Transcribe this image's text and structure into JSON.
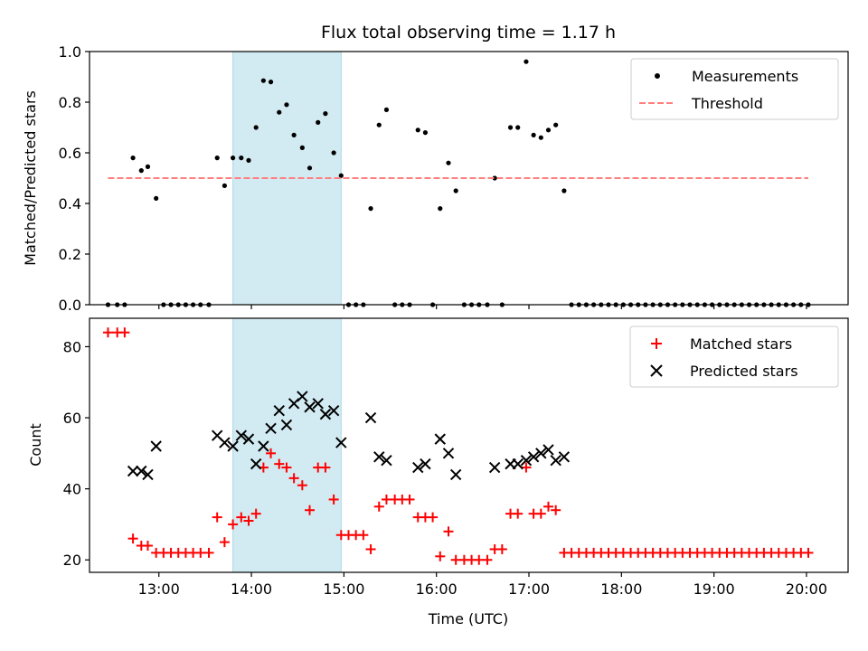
{
  "chart_data": [
    {
      "type": "scatter",
      "title": "Flux total observing time = 1.17 h",
      "ylabel": "Matched/Predicted stars",
      "xlabel": "",
      "x_unit": "hours UTC",
      "xlim": [
        12.25,
        20.45
      ],
      "ylim": [
        0.0,
        1.0
      ],
      "yticks": [
        0.0,
        0.2,
        0.4,
        0.6,
        0.8,
        1.0
      ],
      "ytick_labels": [
        "0.0",
        "0.2",
        "0.4",
        "0.6",
        "0.8",
        "1.0"
      ],
      "xticks": [
        13,
        14,
        15,
        16,
        17,
        18,
        19,
        20
      ],
      "shaded_span": [
        13.8,
        14.97
      ],
      "shade_color": "#add8e6",
      "legend_location": "upper right",
      "legend": [
        "Measurements",
        "Threshold"
      ],
      "series": [
        {
          "name": "Measurements",
          "marker": "dot",
          "color": "#000000",
          "points": [
            [
              12.45,
              0.0
            ],
            [
              12.55,
              0.0
            ],
            [
              12.63,
              0.0
            ],
            [
              12.72,
              0.58
            ],
            [
              12.81,
              0.53
            ],
            [
              12.88,
              0.545
            ],
            [
              12.97,
              0.42
            ],
            [
              13.05,
              0.0
            ],
            [
              13.13,
              0.0
            ],
            [
              13.21,
              0.0
            ],
            [
              13.29,
              0.0
            ],
            [
              13.37,
              0.0
            ],
            [
              13.45,
              0.0
            ],
            [
              13.54,
              0.0
            ],
            [
              13.63,
              0.58
            ],
            [
              13.71,
              0.47
            ],
            [
              13.8,
              0.58
            ],
            [
              13.89,
              0.58
            ],
            [
              13.97,
              0.57
            ],
            [
              14.05,
              0.7
            ],
            [
              14.13,
              0.885
            ],
            [
              14.21,
              0.88
            ],
            [
              14.3,
              0.76
            ],
            [
              14.38,
              0.79
            ],
            [
              14.46,
              0.67
            ],
            [
              14.55,
              0.62
            ],
            [
              14.63,
              0.54
            ],
            [
              14.72,
              0.72
            ],
            [
              14.8,
              0.755
            ],
            [
              14.89,
              0.6
            ],
            [
              14.97,
              0.51
            ],
            [
              15.05,
              0.0
            ],
            [
              15.13,
              0.0
            ],
            [
              15.21,
              0.0
            ],
            [
              15.29,
              0.38
            ],
            [
              15.38,
              0.71
            ],
            [
              15.46,
              0.77
            ],
            [
              15.55,
              0.0
            ],
            [
              15.63,
              0.0
            ],
            [
              15.71,
              0.0
            ],
            [
              15.8,
              0.69
            ],
            [
              15.88,
              0.68
            ],
            [
              15.96,
              0.0
            ],
            [
              16.04,
              0.38
            ],
            [
              16.13,
              0.56
            ],
            [
              16.21,
              0.45
            ],
            [
              16.3,
              0.0
            ],
            [
              16.38,
              0.0
            ],
            [
              16.46,
              0.0
            ],
            [
              16.55,
              0.0
            ],
            [
              16.63,
              0.5
            ],
            [
              16.71,
              0.0
            ],
            [
              16.8,
              0.7
            ],
            [
              16.88,
              0.7
            ],
            [
              16.97,
              0.96
            ],
            [
              17.05,
              0.67
            ],
            [
              17.13,
              0.66
            ],
            [
              17.21,
              0.69
            ],
            [
              17.29,
              0.71
            ],
            [
              17.38,
              0.45
            ],
            [
              17.46,
              0.0
            ],
            [
              17.54,
              0.0
            ],
            [
              17.62,
              0.0
            ],
            [
              17.7,
              0.0
            ],
            [
              17.78,
              0.0
            ],
            [
              17.86,
              0.0
            ],
            [
              17.94,
              0.0
            ],
            [
              18.02,
              0.0
            ],
            [
              18.1,
              0.0
            ],
            [
              18.18,
              0.0
            ],
            [
              18.26,
              0.0
            ],
            [
              18.34,
              0.0
            ],
            [
              18.42,
              0.0
            ],
            [
              18.5,
              0.0
            ],
            [
              18.58,
              0.0
            ],
            [
              18.66,
              0.0
            ],
            [
              18.74,
              0.0
            ],
            [
              18.82,
              0.0
            ],
            [
              18.9,
              0.0
            ],
            [
              18.98,
              0.0
            ],
            [
              19.06,
              0.0
            ],
            [
              19.14,
              0.0
            ],
            [
              19.22,
              0.0
            ],
            [
              19.3,
              0.0
            ],
            [
              19.38,
              0.0
            ],
            [
              19.46,
              0.0
            ],
            [
              19.54,
              0.0
            ],
            [
              19.62,
              0.0
            ],
            [
              19.7,
              0.0
            ],
            [
              19.78,
              0.0
            ],
            [
              19.86,
              0.0
            ],
            [
              19.94,
              0.0
            ],
            [
              20.02,
              0.0
            ]
          ]
        },
        {
          "name": "Threshold",
          "marker": "dashed-line",
          "color": "#ff7f7f",
          "points": [
            [
              12.45,
              0.5
            ],
            [
              20.02,
              0.5
            ]
          ]
        }
      ]
    },
    {
      "type": "scatter",
      "title": "",
      "ylabel": "Count",
      "xlabel": "Time (UTC)",
      "x_unit": "hours UTC",
      "xlim": [
        12.25,
        20.45
      ],
      "ylim": [
        16.5,
        88
      ],
      "yticks": [
        20,
        40,
        60,
        80
      ],
      "ytick_labels": [
        "20",
        "40",
        "60",
        "80"
      ],
      "xticks": [
        13,
        14,
        15,
        16,
        17,
        18,
        19,
        20
      ],
      "xtick_labels": [
        "13:00",
        "14:00",
        "15:00",
        "16:00",
        "17:00",
        "18:00",
        "19:00",
        "20:00"
      ],
      "shaded_span": [
        13.8,
        14.97
      ],
      "shade_color": "#add8e6",
      "legend_location": "upper right",
      "legend": [
        "Matched stars",
        "Predicted stars"
      ],
      "series": [
        {
          "name": "Matched stars",
          "marker": "plus",
          "color": "#ff0000",
          "points": [
            [
              12.45,
              84
            ],
            [
              12.55,
              84
            ],
            [
              12.63,
              84
            ],
            [
              12.72,
              26
            ],
            [
              12.81,
              24
            ],
            [
              12.88,
              24
            ],
            [
              12.97,
              22
            ],
            [
              13.05,
              22
            ],
            [
              13.13,
              22
            ],
            [
              13.21,
              22
            ],
            [
              13.29,
              22
            ],
            [
              13.37,
              22
            ],
            [
              13.45,
              22
            ],
            [
              13.54,
              22
            ],
            [
              13.63,
              32
            ],
            [
              13.71,
              25
            ],
            [
              13.8,
              30
            ],
            [
              13.89,
              32
            ],
            [
              13.97,
              31
            ],
            [
              14.05,
              33
            ],
            [
              14.13,
              46
            ],
            [
              14.21,
              50
            ],
            [
              14.3,
              47
            ],
            [
              14.38,
              46
            ],
            [
              14.46,
              43
            ],
            [
              14.55,
              41
            ],
            [
              14.63,
              34
            ],
            [
              14.72,
              46
            ],
            [
              14.8,
              46
            ],
            [
              14.89,
              37
            ],
            [
              14.97,
              27
            ],
            [
              15.05,
              27
            ],
            [
              15.13,
              27
            ],
            [
              15.21,
              27
            ],
            [
              15.29,
              23
            ],
            [
              15.38,
              35
            ],
            [
              15.46,
              37
            ],
            [
              15.55,
              37
            ],
            [
              15.63,
              37
            ],
            [
              15.71,
              37
            ],
            [
              15.8,
              32
            ],
            [
              15.88,
              32
            ],
            [
              15.96,
              32
            ],
            [
              16.04,
              21
            ],
            [
              16.13,
              28
            ],
            [
              16.21,
              20
            ],
            [
              16.3,
              20
            ],
            [
              16.38,
              20
            ],
            [
              16.46,
              20
            ],
            [
              16.55,
              20
            ],
            [
              16.63,
              23
            ],
            [
              16.71,
              23
            ],
            [
              16.8,
              33
            ],
            [
              16.88,
              33
            ],
            [
              16.97,
              46
            ],
            [
              17.05,
              33
            ],
            [
              17.13,
              33
            ],
            [
              17.21,
              35
            ],
            [
              17.29,
              34
            ],
            [
              17.38,
              22
            ],
            [
              17.46,
              22
            ],
            [
              17.54,
              22
            ],
            [
              17.62,
              22
            ],
            [
              17.7,
              22
            ],
            [
              17.78,
              22
            ],
            [
              17.86,
              22
            ],
            [
              17.94,
              22
            ],
            [
              18.02,
              22
            ],
            [
              18.1,
              22
            ],
            [
              18.18,
              22
            ],
            [
              18.26,
              22
            ],
            [
              18.34,
              22
            ],
            [
              18.42,
              22
            ],
            [
              18.5,
              22
            ],
            [
              18.58,
              22
            ],
            [
              18.66,
              22
            ],
            [
              18.74,
              22
            ],
            [
              18.82,
              22
            ],
            [
              18.9,
              22
            ],
            [
              18.98,
              22
            ],
            [
              19.06,
              22
            ],
            [
              19.14,
              22
            ],
            [
              19.22,
              22
            ],
            [
              19.3,
              22
            ],
            [
              19.38,
              22
            ],
            [
              19.46,
              22
            ],
            [
              19.54,
              22
            ],
            [
              19.62,
              22
            ],
            [
              19.7,
              22
            ],
            [
              19.78,
              22
            ],
            [
              19.86,
              22
            ],
            [
              19.94,
              22
            ],
            [
              20.02,
              22
            ]
          ]
        },
        {
          "name": "Predicted stars",
          "marker": "x",
          "color": "#000000",
          "points": [
            [
              12.72,
              45
            ],
            [
              12.81,
              45
            ],
            [
              12.88,
              44
            ],
            [
              12.97,
              52
            ],
            [
              13.63,
              55
            ],
            [
              13.71,
              53
            ],
            [
              13.8,
              52
            ],
            [
              13.89,
              55
            ],
            [
              13.97,
              54
            ],
            [
              14.05,
              47
            ],
            [
              14.13,
              52
            ],
            [
              14.21,
              57
            ],
            [
              14.3,
              62
            ],
            [
              14.38,
              58
            ],
            [
              14.46,
              64
            ],
            [
              14.55,
              66
            ],
            [
              14.63,
              63
            ],
            [
              14.72,
              64
            ],
            [
              14.8,
              61
            ],
            [
              14.89,
              62
            ],
            [
              14.97,
              53
            ],
            [
              15.29,
              60
            ],
            [
              15.38,
              49
            ],
            [
              15.46,
              48
            ],
            [
              15.8,
              46
            ],
            [
              15.88,
              47
            ],
            [
              16.04,
              54
            ],
            [
              16.13,
              50
            ],
            [
              16.21,
              44
            ],
            [
              16.63,
              46
            ],
            [
              16.8,
              47
            ],
            [
              16.88,
              47
            ],
            [
              16.97,
              48
            ],
            [
              17.05,
              49
            ],
            [
              17.13,
              50
            ],
            [
              17.21,
              51
            ],
            [
              17.29,
              48
            ],
            [
              17.38,
              49
            ]
          ]
        }
      ]
    }
  ]
}
